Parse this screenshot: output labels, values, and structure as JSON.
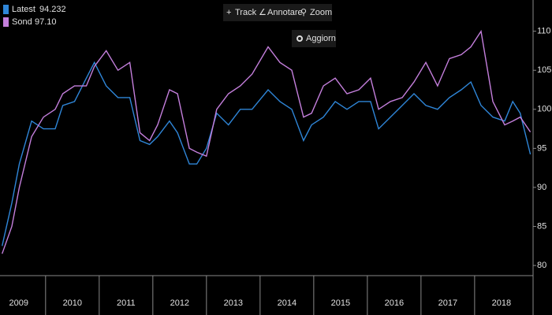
{
  "toolbar": {
    "buttons": [
      "Track",
      "Annotare",
      "Zoom"
    ],
    "refresh": "Aggiorn"
  },
  "chart_data": {
    "type": "line",
    "x": [
      2009.19,
      2009.37,
      2009.51,
      2009.74,
      2009.96,
      2010.18,
      2010.32,
      2010.54,
      2010.76,
      2010.91,
      2011.13,
      2011.35,
      2011.57,
      2011.76,
      2011.94,
      2012.09,
      2012.31,
      2012.46,
      2012.68,
      2012.82,
      2013.0,
      2013.19,
      2013.41,
      2013.63,
      2013.85,
      2014.15,
      2014.37,
      2014.59,
      2014.81,
      2014.96,
      2015.18,
      2015.4,
      2015.62,
      2015.84,
      2016.06,
      2016.21,
      2016.43,
      2016.65,
      2016.87,
      2017.09,
      2017.31,
      2017.53,
      2017.75,
      2017.93,
      2018.12,
      2018.34,
      2018.56,
      2018.71,
      2018.85,
      2019.04
    ],
    "series": [
      {
        "name": "Latest",
        "legend_value": "94.232",
        "color": "#2f86d8",
        "values": [
          82.5,
          88,
          93,
          98.5,
          97.5,
          97.5,
          100.5,
          101,
          104,
          106,
          103,
          101.5,
          101.5,
          96,
          95.5,
          96.5,
          98.5,
          97,
          93,
          93,
          95,
          99.5,
          98,
          100,
          100,
          102.5,
          101,
          100,
          96,
          98,
          99,
          101,
          100,
          101,
          101,
          97.5,
          99,
          100.5,
          102,
          100.5,
          100,
          101.5,
          102.5,
          103.5,
          100.5,
          99,
          98.5,
          101,
          99.5,
          94.232
        ]
      },
      {
        "name": "Sond",
        "legend_value": "97.10",
        "color": "#c47fdc",
        "values": [
          81.5,
          85,
          90,
          96.5,
          99,
          100,
          102,
          103,
          103,
          105.5,
          107.5,
          105,
          106,
          97,
          96,
          98,
          102.5,
          102,
          95,
          94.5,
          94,
          100,
          102,
          103,
          104.5,
          108,
          106,
          105,
          99,
          99.5,
          103,
          104,
          102,
          102.5,
          104,
          100,
          101,
          101.5,
          103.5,
          106,
          103,
          106.5,
          107,
          108,
          110,
          101,
          98,
          98.5,
          99,
          97.1
        ]
      }
    ],
    "xlim": [
      2009.15,
      2019.09
    ],
    "xticks": [
      2009,
      2010,
      2011,
      2012,
      2013,
      2014,
      2015,
      2016,
      2017,
      2018
    ],
    "ylim": [
      78.7,
      114.0
    ],
    "yticks": [
      80,
      85,
      90,
      95,
      100,
      105,
      110
    ]
  }
}
